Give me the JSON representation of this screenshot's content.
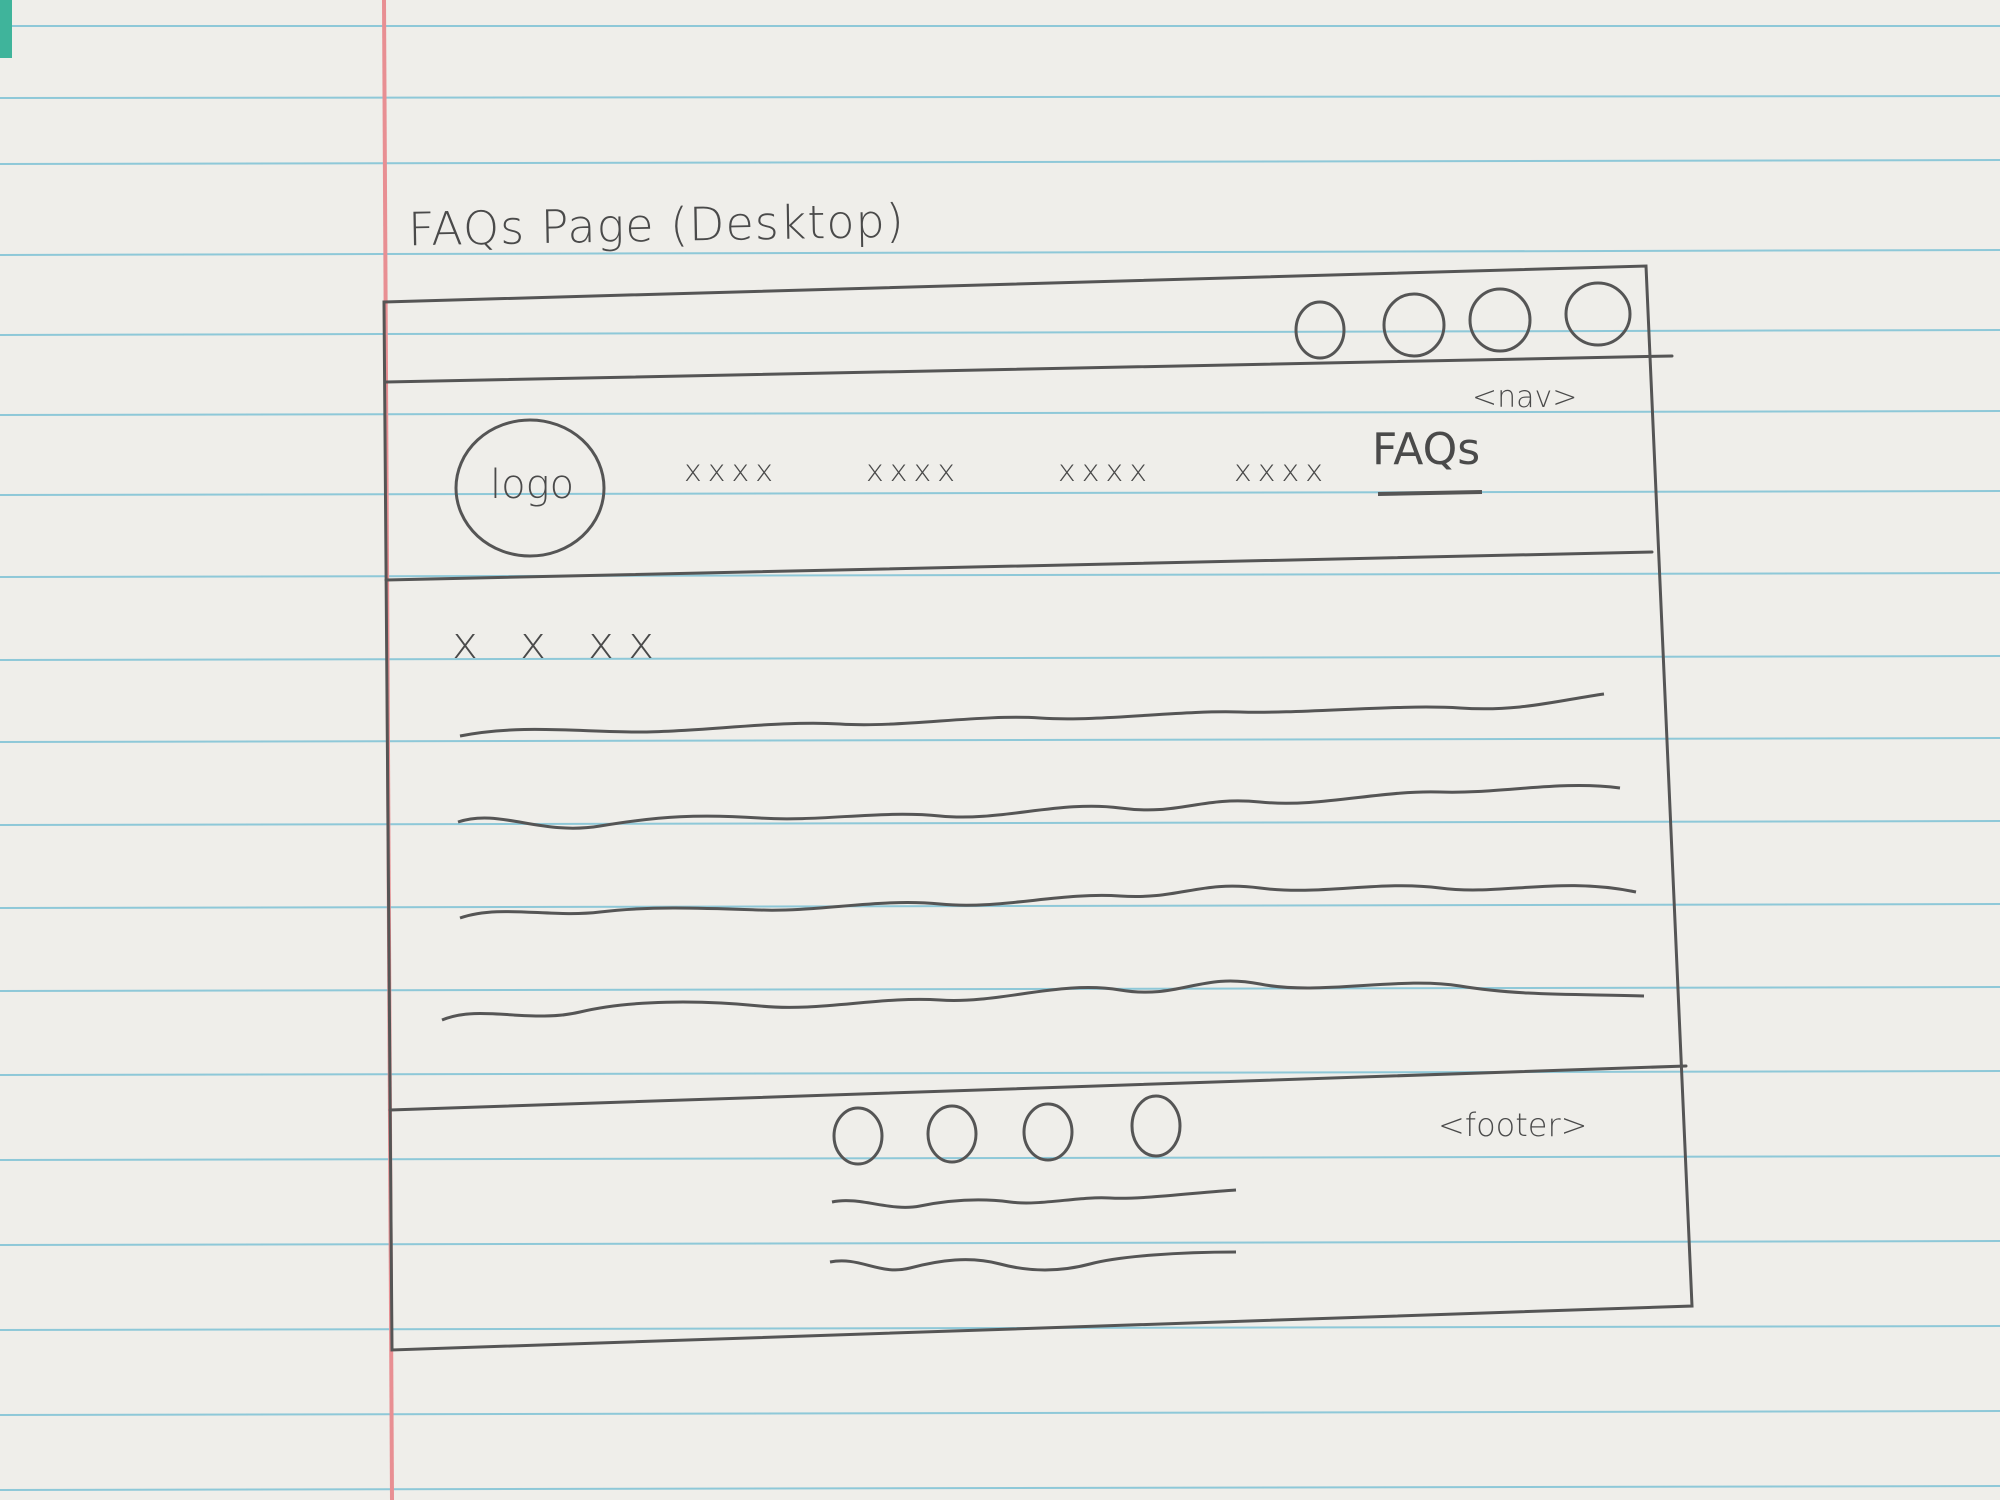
{
  "page_title": "FAQs Page (Desktop)",
  "nav": {
    "tag": "<nav>",
    "logo_label": "logo",
    "items": [
      "xxxx",
      "xxxx",
      "xxxx",
      "xxxx"
    ],
    "active_item": "FAQs"
  },
  "content": {
    "heading": "x x xx"
  },
  "footer": {
    "tag": "<footer>"
  },
  "colors": {
    "paper": "#efeeea",
    "rule_line": "#8ec8d8",
    "margin_line": "#e88f93",
    "pencil": "#4a4a4a"
  }
}
